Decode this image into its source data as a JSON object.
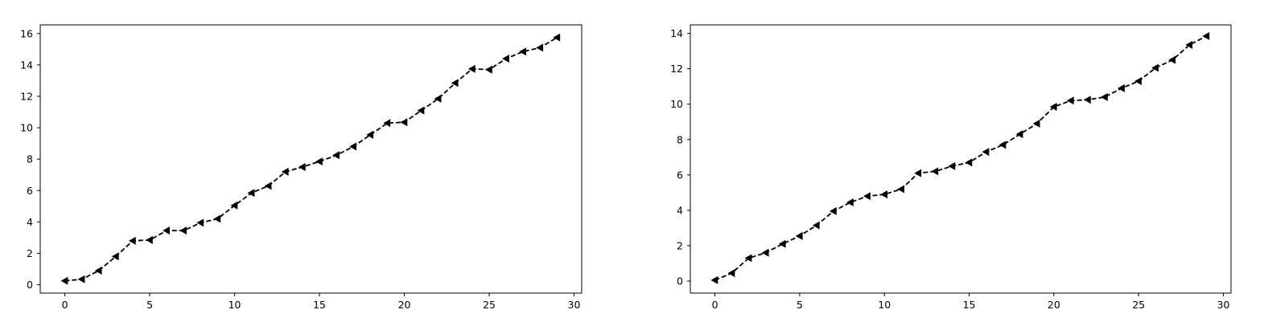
{
  "chart_data": [
    {
      "type": "line",
      "title": "",
      "xlabel": "",
      "ylabel": "",
      "xlim": [
        -1.45,
        30.45
      ],
      "ylim": [
        -0.53,
        16.55
      ],
      "xticks": [
        0,
        5,
        10,
        15,
        20,
        25,
        30
      ],
      "yticks": [
        0,
        2,
        4,
        6,
        8,
        10,
        12,
        14,
        16
      ],
      "grid": false,
      "line_style": "dashed",
      "marker": "triangle-left",
      "color": "#000000",
      "series": [
        {
          "x": [
            0,
            1,
            2,
            3,
            4,
            5,
            6,
            7,
            8,
            9,
            10,
            11,
            12,
            13,
            14,
            15,
            16,
            17,
            18,
            19,
            20,
            21,
            22,
            23,
            24,
            25,
            26,
            27,
            28,
            29
          ],
          "y": [
            0.25,
            0.35,
            0.9,
            1.8,
            2.8,
            2.85,
            3.45,
            3.45,
            3.95,
            4.2,
            5.05,
            5.85,
            6.3,
            7.2,
            7.5,
            7.85,
            8.25,
            8.8,
            9.55,
            10.3,
            10.35,
            11.1,
            11.85,
            12.85,
            13.75,
            13.7,
            14.4,
            14.85,
            15.1,
            15.75
          ]
        }
      ]
    },
    {
      "type": "line",
      "title": "",
      "xlabel": "",
      "ylabel": "",
      "xlim": [
        -1.45,
        30.45
      ],
      "ylim": [
        -0.68,
        14.48
      ],
      "xticks": [
        0,
        5,
        10,
        15,
        20,
        25,
        30
      ],
      "yticks": [
        0,
        2,
        4,
        6,
        8,
        10,
        12,
        14
      ],
      "grid": false,
      "line_style": "dashed",
      "marker": "triangle-left",
      "color": "#000000",
      "series": [
        {
          "x": [
            0,
            1,
            2,
            3,
            4,
            5,
            6,
            7,
            8,
            9,
            10,
            11,
            12,
            13,
            14,
            15,
            16,
            17,
            18,
            19,
            20,
            21,
            22,
            23,
            24,
            25,
            26,
            27,
            28,
            29
          ],
          "y": [
            0.05,
            0.45,
            1.3,
            1.6,
            2.1,
            2.55,
            3.15,
            3.95,
            4.45,
            4.8,
            4.9,
            5.2,
            6.1,
            6.2,
            6.5,
            6.7,
            7.3,
            7.7,
            8.3,
            8.9,
            9.85,
            10.2,
            10.25,
            10.4,
            10.9,
            11.3,
            12.05,
            12.5,
            13.35,
            13.85
          ]
        }
      ]
    }
  ]
}
